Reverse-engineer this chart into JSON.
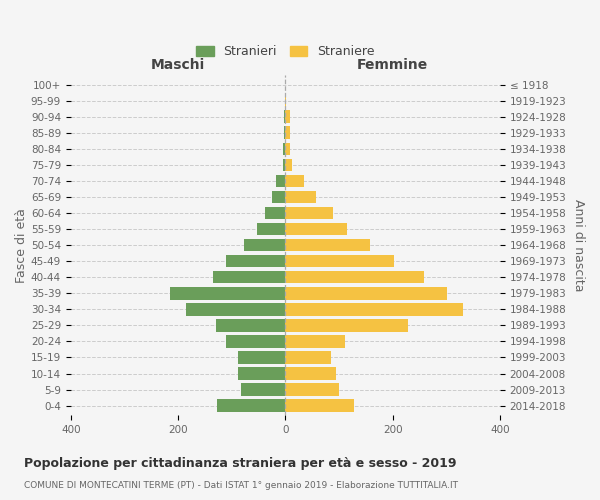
{
  "age_groups": [
    "0-4",
    "5-9",
    "10-14",
    "15-19",
    "20-24",
    "25-29",
    "30-34",
    "35-39",
    "40-44",
    "45-49",
    "50-54",
    "55-59",
    "60-64",
    "65-69",
    "70-74",
    "75-79",
    "80-84",
    "85-89",
    "90-94",
    "95-99",
    "100+"
  ],
  "birth_years": [
    "2014-2018",
    "2009-2013",
    "2004-2008",
    "1999-2003",
    "1994-1998",
    "1989-1993",
    "1984-1988",
    "1979-1983",
    "1974-1978",
    "1969-1973",
    "1964-1968",
    "1959-1963",
    "1954-1958",
    "1949-1953",
    "1944-1948",
    "1939-1943",
    "1934-1938",
    "1929-1933",
    "1924-1928",
    "1919-1923",
    "≤ 1918"
  ],
  "males": [
    128,
    82,
    88,
    88,
    110,
    130,
    185,
    215,
    135,
    110,
    78,
    52,
    38,
    25,
    18,
    5,
    4,
    3,
    2,
    0,
    0
  ],
  "females": [
    128,
    100,
    95,
    85,
    112,
    228,
    332,
    302,
    258,
    202,
    158,
    115,
    88,
    58,
    35,
    12,
    8,
    8,
    8,
    2,
    0
  ],
  "male_color": "#6a9e5a",
  "female_color": "#f5c242",
  "bg_color": "#f5f5f5",
  "grid_color": "#cccccc",
  "center_line_color": "#aaaaaa",
  "title": "Popolazione per cittadinanza straniera per età e sesso - 2019",
  "subtitle": "COMUNE DI MONTECATINI TERME (PT) - Dati ISTAT 1° gennaio 2019 - Elaborazione TUTTITALIA.IT",
  "label_maschi": "Maschi",
  "label_femmine": "Femmine",
  "ylabel_left": "Fasce di età",
  "ylabel_right": "Anni di nascita",
  "legend_males": "Stranieri",
  "legend_females": "Straniere",
  "xlim": 400,
  "bar_height": 0.78,
  "tick_fontsize": 7.5,
  "header_fontsize": 10,
  "label_fontsize": 9,
  "title_fontsize": 9,
  "subtitle_fontsize": 6.5
}
